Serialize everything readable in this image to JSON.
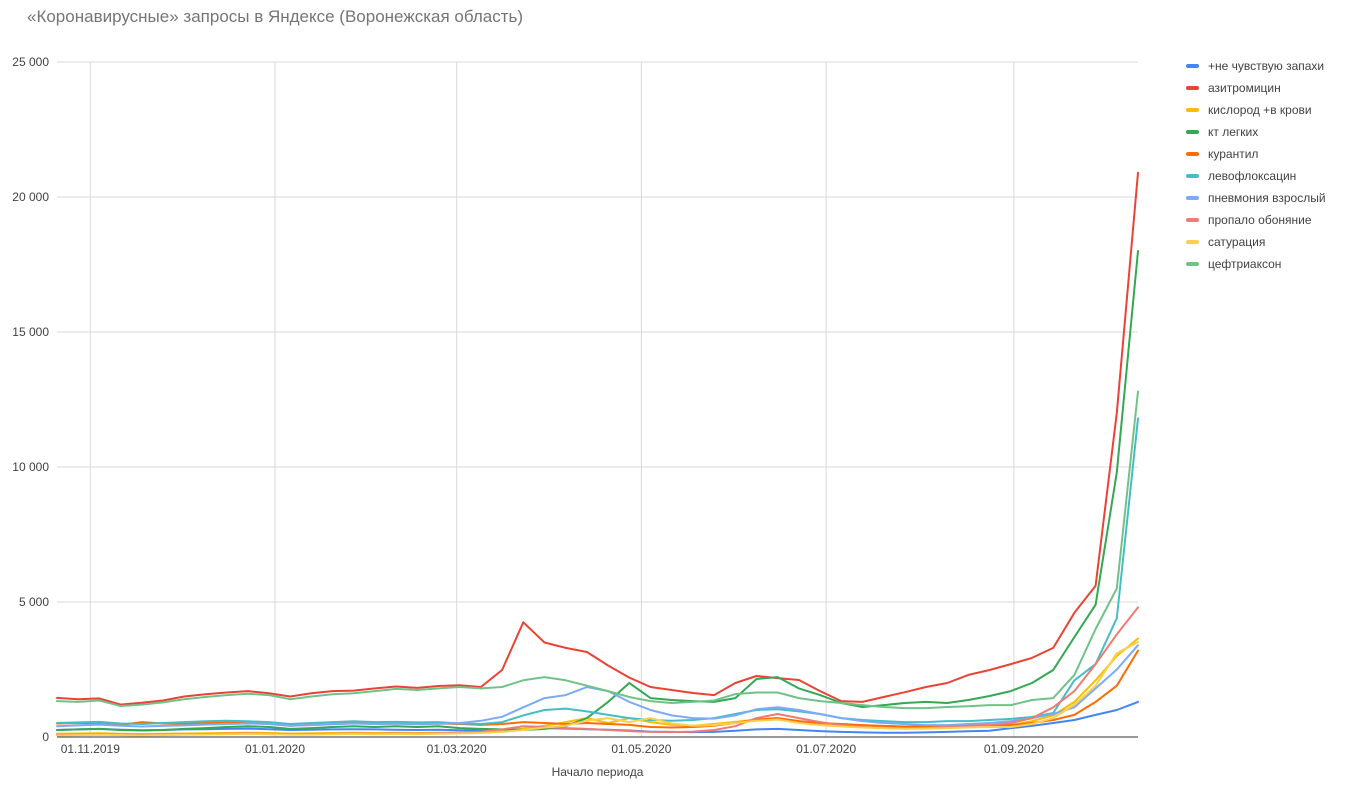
{
  "title": "«Коронавирусные» запросы в Яндексе (Воронежская область)",
  "chart_data": {
    "type": "line",
    "title": "«Коронавирусные» запросы в Яндексе (Воронежская область)",
    "xlabel": "Начало периода",
    "ylabel": "",
    "ylim": [
      0,
      25000
    ],
    "grid": true,
    "legend_position": "right",
    "y_ticks": [
      0,
      5000,
      10000,
      15000,
      20000,
      25000
    ],
    "y_tick_labels": [
      "0",
      "5 000",
      "10 000",
      "15 000",
      "20 000",
      "25 000"
    ],
    "x_tick_labels": [
      "01.11.2019",
      "01.01.2020",
      "01.03.2020",
      "01.05.2020",
      "01.07.2020",
      "01.09.2020"
    ],
    "x_tick_positions": [
      1.571,
      10.286,
      18.857,
      27.571,
      36.286,
      45.143
    ],
    "x": [
      "21.10.2019",
      "28.10.2019",
      "04.11.2019",
      "11.11.2019",
      "18.11.2019",
      "25.11.2019",
      "02.12.2019",
      "09.12.2019",
      "16.12.2019",
      "23.12.2019",
      "30.12.2019",
      "06.01.2020",
      "13.01.2020",
      "20.01.2020",
      "27.01.2020",
      "03.02.2020",
      "10.02.2020",
      "17.02.2020",
      "24.02.2020",
      "02.03.2020",
      "09.03.2020",
      "16.03.2020",
      "23.03.2020",
      "30.03.2020",
      "06.04.2020",
      "13.04.2020",
      "20.04.2020",
      "27.04.2020",
      "04.05.2020",
      "11.05.2020",
      "18.05.2020",
      "25.05.2020",
      "01.06.2020",
      "08.06.2020",
      "15.06.2020",
      "22.06.2020",
      "29.06.2020",
      "06.07.2020",
      "13.07.2020",
      "20.07.2020",
      "27.07.2020",
      "03.08.2020",
      "10.08.2020",
      "17.08.2020",
      "24.08.2020",
      "31.08.2020",
      "07.09.2020",
      "14.09.2020",
      "21.09.2020",
      "28.09.2020",
      "05.10.2020",
      "12.10.2020"
    ],
    "series": [
      {
        "name": "+не чувствую запахи",
        "color": "#4285F4",
        "values": [
          260,
          280,
          300,
          270,
          250,
          260,
          280,
          290,
          300,
          310,
          290,
          260,
          270,
          280,
          290,
          280,
          270,
          260,
          270,
          250,
          240,
          260,
          300,
          330,
          310,
          290,
          270,
          240,
          200,
          190,
          180,
          190,
          230,
          280,
          300,
          260,
          220,
          190,
          170,
          160,
          160,
          170,
          190,
          210,
          230,
          330,
          410,
          520,
          630,
          820,
          1000,
          1300
        ]
      },
      {
        "name": "азитромицин",
        "color": "#EA4335",
        "values": [
          1450,
          1400,
          1430,
          1200,
          1270,
          1350,
          1500,
          1580,
          1650,
          1700,
          1620,
          1500,
          1620,
          1700,
          1720,
          1800,
          1870,
          1820,
          1890,
          1920,
          1850,
          2480,
          4250,
          3500,
          3300,
          3150,
          2650,
          2200,
          1850,
          1740,
          1630,
          1550,
          2000,
          2260,
          2180,
          2110,
          1700,
          1330,
          1300,
          1480,
          1660,
          1850,
          2000,
          2300,
          2480,
          2700,
          2930,
          3300,
          4600,
          5600,
          12000,
          20900
        ]
      },
      {
        "name": "кислород +в крови",
        "color": "#FBBC04",
        "values": [
          120,
          130,
          140,
          120,
          110,
          120,
          130,
          140,
          150,
          160,
          150,
          130,
          140,
          150,
          160,
          150,
          160,
          150,
          160,
          170,
          180,
          220,
          300,
          420,
          550,
          700,
          520,
          700,
          550,
          450,
          420,
          480,
          560,
          650,
          700,
          560,
          480,
          420,
          380,
          350,
          330,
          350,
          370,
          390,
          410,
          440,
          590,
          800,
          1300,
          2100,
          3000,
          3650
        ]
      },
      {
        "name": "кт легких",
        "color": "#34A853",
        "values": [
          260,
          280,
          300,
          260,
          240,
          260,
          300,
          330,
          370,
          400,
          370,
          300,
          330,
          370,
          400,
          370,
          400,
          370,
          400,
          330,
          300,
          280,
          260,
          300,
          400,
          700,
          1300,
          2000,
          1440,
          1370,
          1330,
          1300,
          1440,
          2150,
          2220,
          1800,
          1550,
          1260,
          1110,
          1180,
          1260,
          1300,
          1260,
          1370,
          1520,
          1700,
          2000,
          2480,
          3700,
          4900,
          9800,
          18000
        ]
      },
      {
        "name": "курантил",
        "color": "#FF6D01",
        "values": [
          500,
          520,
          480,
          450,
          550,
          500,
          480,
          520,
          550,
          520,
          480,
          420,
          450,
          480,
          520,
          480,
          500,
          480,
          500,
          480,
          450,
          480,
          550,
          520,
          480,
          520,
          480,
          450,
          370,
          350,
          370,
          420,
          520,
          650,
          700,
          590,
          520,
          480,
          440,
          410,
          390,
          390,
          410,
          430,
          440,
          440,
          520,
          630,
          820,
          1300,
          1900,
          3200
        ]
      },
      {
        "name": "левофлоксацин",
        "color": "#46BDC6",
        "values": [
          520,
          540,
          560,
          500,
          480,
          520,
          550,
          580,
          600,
          580,
          550,
          480,
          520,
          550,
          580,
          550,
          560,
          540,
          550,
          500,
          480,
          550,
          800,
          1000,
          1050,
          950,
          820,
          700,
          630,
          600,
          630,
          700,
          850,
          1000,
          1030,
          950,
          850,
          700,
          630,
          590,
          550,
          550,
          590,
          590,
          630,
          670,
          740,
          890,
          2100,
          2700,
          4400,
          11800
        ]
      },
      {
        "name": "пневмония взрослый",
        "color": "#7BAAF7",
        "values": [
          400,
          430,
          460,
          420,
          390,
          410,
          430,
          460,
          480,
          500,
          480,
          420,
          440,
          470,
          500,
          480,
          490,
          470,
          490,
          520,
          600,
          750,
          1100,
          1440,
          1550,
          1850,
          1700,
          1300,
          1000,
          800,
          700,
          680,
          800,
          1030,
          1100,
          1000,
          850,
          700,
          590,
          520,
          480,
          440,
          440,
          480,
          520,
          590,
          700,
          850,
          1100,
          1800,
          2500,
          3400
        ]
      },
      {
        "name": "пропало обоняние",
        "color": "#F07B72",
        "values": [
          80,
          90,
          100,
          90,
          80,
          90,
          100,
          110,
          120,
          130,
          120,
          100,
          110,
          120,
          130,
          120,
          130,
          120,
          140,
          160,
          200,
          280,
          400,
          370,
          330,
          300,
          260,
          220,
          190,
          180,
          200,
          260,
          400,
          700,
          850,
          700,
          550,
          440,
          370,
          330,
          330,
          330,
          370,
          410,
          440,
          520,
          700,
          1100,
          1700,
          2700,
          3800,
          4800
        ]
      },
      {
        "name": "сатурация",
        "color": "#FCD04F",
        "values": [
          60,
          70,
          80,
          70,
          60,
          70,
          80,
          90,
          100,
          110,
          100,
          80,
          90,
          100,
          110,
          100,
          110,
          100,
          120,
          130,
          150,
          190,
          260,
          350,
          420,
          600,
          700,
          550,
          700,
          500,
          420,
          440,
          520,
          600,
          650,
          520,
          440,
          390,
          350,
          330,
          300,
          310,
          330,
          350,
          370,
          370,
          480,
          700,
          1200,
          1900,
          3100,
          3520
        ]
      },
      {
        "name": "цефтриаксон",
        "color": "#71C287",
        "values": [
          1330,
          1300,
          1350,
          1150,
          1200,
          1280,
          1400,
          1480,
          1550,
          1600,
          1550,
          1400,
          1500,
          1580,
          1620,
          1700,
          1780,
          1740,
          1800,
          1850,
          1800,
          1850,
          2100,
          2220,
          2100,
          1900,
          1700,
          1480,
          1330,
          1260,
          1300,
          1350,
          1590,
          1650,
          1650,
          1440,
          1330,
          1260,
          1180,
          1110,
          1070,
          1070,
          1110,
          1140,
          1180,
          1180,
          1370,
          1440,
          2300,
          4000,
          5500,
          12800
        ]
      }
    ]
  }
}
